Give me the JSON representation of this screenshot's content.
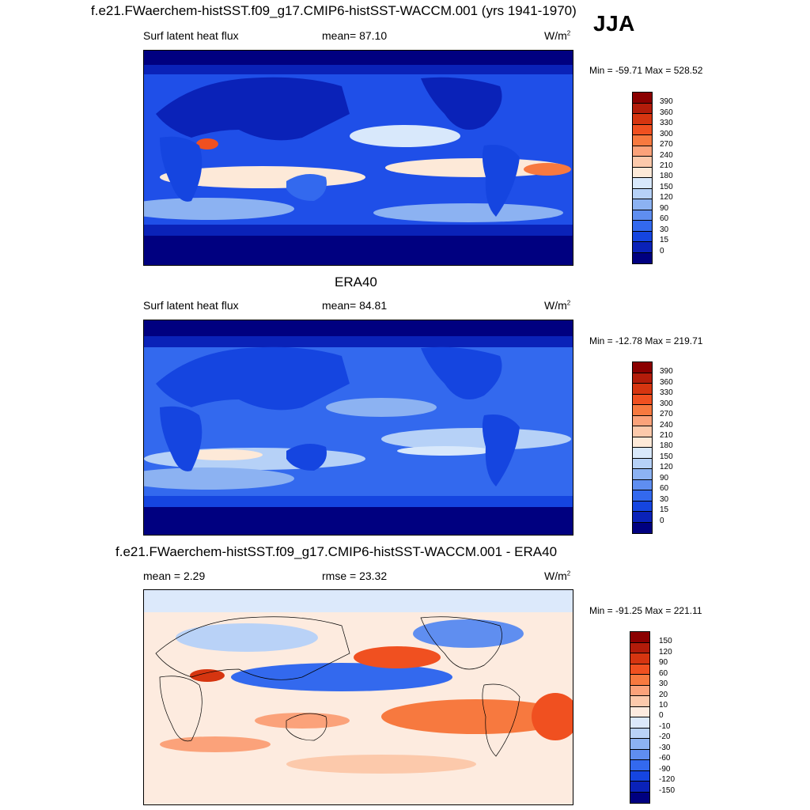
{
  "figure": {
    "main_title": "f.e21.FWaerchem-histSST.f09_g17.CMIP6-histSST-WACCM.001 (yrs 1941-1970)",
    "season": "JJA"
  },
  "panel_model": {
    "variable": "Surf latent heat flux",
    "mean_text": "mean=  87.10",
    "units": "W/m",
    "units_exp": "2",
    "minmax": "Min = -59.71 Max = 528.52",
    "colorbar_labels": [
      "390",
      "360",
      "330",
      "300",
      "270",
      "240",
      "210",
      "180",
      "150",
      "120",
      "90",
      "60",
      "30",
      "15",
      "0"
    ]
  },
  "panel_obs": {
    "title": "ERA40",
    "variable": "Surf latent heat flux",
    "mean_text": "mean=  84.81",
    "units": "W/m",
    "units_exp": "2",
    "minmax": "Min = -12.78 Max = 219.71",
    "colorbar_labels": [
      "390",
      "360",
      "330",
      "300",
      "270",
      "240",
      "210",
      "180",
      "150",
      "120",
      "90",
      "60",
      "30",
      "15",
      "0"
    ]
  },
  "panel_diff": {
    "title": "f.e21.FWaerchem-histSST.f09_g17.CMIP6-histSST-WACCM.001 - ERA40",
    "mean_text": "mean =   2.29",
    "rmse_text": "rmse =  23.32",
    "units": "W/m",
    "units_exp": "2",
    "minmax": "Min = -91.25 Max = 221.11",
    "colorbar_labels": [
      "150",
      "120",
      "90",
      "60",
      "30",
      "20",
      "10",
      "0",
      "-10",
      "-20",
      "-30",
      "-60",
      "-90",
      "-120",
      "-150"
    ]
  },
  "palettes": {
    "abs": [
      "#8b0000",
      "#b31c0a",
      "#d63510",
      "#f05020",
      "#f7793f",
      "#fba27a",
      "#fcc9ab",
      "#fde9d8",
      "#d8e8fb",
      "#b6d1f7",
      "#8cb2f2",
      "#5f8ef0",
      "#3369ee",
      "#1545e0",
      "#0a22b8",
      "#000080"
    ],
    "diff": [
      "#8b0000",
      "#b31c0a",
      "#d63510",
      "#f05020",
      "#f7793f",
      "#fba27a",
      "#fcc9ab",
      "#fdebdf",
      "#dce9fb",
      "#b9d2f7",
      "#8cb2f2",
      "#5f8ef0",
      "#3369ee",
      "#1545e0",
      "#0a22b8",
      "#000080"
    ]
  }
}
